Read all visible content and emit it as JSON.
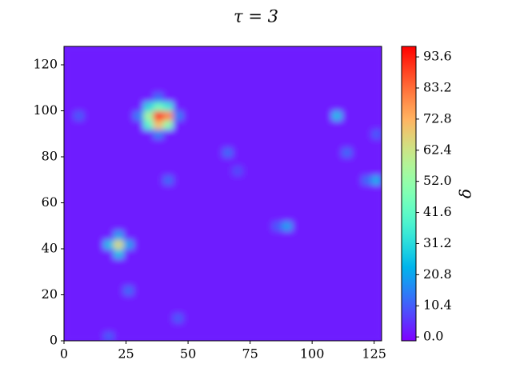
{
  "chart_data": {
    "type": "heatmap",
    "title": "τ = 3",
    "colorbar_label": "δ",
    "xlim": [
      0,
      128
    ],
    "ylim": [
      0,
      128
    ],
    "xticks": [
      0,
      25,
      50,
      75,
      100,
      125
    ],
    "yticks": [
      0,
      20,
      40,
      60,
      80,
      100,
      120
    ],
    "colormap": "rainbow",
    "clim": [
      -1.3,
      97.1
    ],
    "cticks": [
      {
        "value": 0,
        "label": "0.0"
      },
      10.4,
      20.8,
      31.2,
      41.6,
      {
        "value": 52,
        "label": "52.0"
      },
      62.4,
      72.8,
      83.2,
      93.6
    ],
    "z": [
      [
        2,
        2,
        2,
        2,
        10,
        2,
        2,
        2,
        2,
        2,
        2,
        2,
        2,
        2,
        2,
        2,
        2,
        2,
        2,
        2,
        2,
        2,
        2,
        2,
        2,
        2,
        2,
        2,
        2,
        2,
        2,
        2
      ],
      [
        2,
        2,
        2,
        2,
        2,
        2,
        2,
        2,
        2,
        2,
        2,
        2,
        2,
        2,
        2,
        2,
        2,
        2,
        2,
        2,
        2,
        2,
        2,
        2,
        2,
        2,
        2,
        2,
        2,
        2,
        2,
        2
      ],
      [
        2,
        2,
        2,
        2,
        2,
        2,
        2,
        2,
        2,
        2,
        2,
        10,
        2,
        2,
        2,
        2,
        2,
        2,
        2,
        2,
        2,
        2,
        2,
        2,
        2,
        2,
        2,
        2,
        2,
        2,
        2,
        2
      ],
      [
        2,
        2,
        2,
        2,
        2,
        2,
        2,
        2,
        2,
        2,
        2,
        2,
        2,
        2,
        2,
        2,
        2,
        2,
        2,
        2,
        2,
        2,
        2,
        2,
        2,
        2,
        2,
        2,
        2,
        2,
        2,
        2
      ],
      [
        2,
        2,
        2,
        2,
        2,
        2,
        2,
        2,
        2,
        2,
        2,
        2,
        2,
        2,
        2,
        2,
        2,
        2,
        2,
        2,
        2,
        2,
        2,
        2,
        2,
        2,
        2,
        2,
        2,
        2,
        2,
        2
      ],
      [
        2,
        2,
        2,
        2,
        2,
        2,
        12,
        2,
        2,
        2,
        2,
        2,
        2,
        2,
        2,
        2,
        2,
        2,
        2,
        2,
        2,
        2,
        2,
        2,
        2,
        2,
        2,
        2,
        2,
        2,
        2,
        2
      ],
      [
        2,
        2,
        2,
        2,
        2,
        2,
        2,
        2,
        2,
        2,
        2,
        2,
        2,
        2,
        2,
        2,
        2,
        2,
        2,
        2,
        2,
        2,
        2,
        2,
        2,
        2,
        2,
        2,
        2,
        2,
        2,
        2
      ],
      [
        2,
        2,
        2,
        2,
        2,
        2,
        2,
        2,
        2,
        2,
        2,
        2,
        2,
        2,
        2,
        2,
        2,
        2,
        2,
        2,
        2,
        2,
        2,
        2,
        2,
        2,
        2,
        2,
        2,
        2,
        2,
        2
      ],
      [
        2,
        2,
        2,
        2,
        2,
        2,
        2,
        2,
        2,
        2,
        2,
        2,
        2,
        2,
        2,
        2,
        2,
        2,
        2,
        2,
        2,
        2,
        2,
        2,
        2,
        2,
        2,
        2,
        2,
        2,
        2,
        2
      ],
      [
        2,
        2,
        2,
        2,
        2,
        25,
        2,
        2,
        2,
        2,
        2,
        2,
        2,
        2,
        2,
        2,
        2,
        2,
        2,
        2,
        2,
        2,
        2,
        2,
        2,
        2,
        2,
        2,
        2,
        2,
        2,
        2
      ],
      [
        2,
        2,
        2,
        2,
        25,
        65,
        20,
        2,
        2,
        2,
        2,
        2,
        2,
        2,
        2,
        2,
        2,
        2,
        2,
        2,
        2,
        2,
        2,
        2,
        2,
        2,
        2,
        2,
        2,
        2,
        2,
        2
      ],
      [
        2,
        2,
        2,
        2,
        2,
        20,
        2,
        2,
        2,
        2,
        2,
        2,
        2,
        2,
        2,
        2,
        2,
        2,
        2,
        2,
        2,
        2,
        2,
        2,
        2,
        2,
        2,
        2,
        2,
        2,
        2,
        2
      ],
      [
        2,
        2,
        2,
        2,
        2,
        2,
        2,
        2,
        2,
        2,
        2,
        2,
        2,
        2,
        2,
        2,
        2,
        2,
        2,
        2,
        2,
        10,
        20,
        2,
        2,
        2,
        2,
        2,
        2,
        2,
        2,
        2
      ],
      [
        2,
        2,
        2,
        2,
        2,
        2,
        2,
        2,
        2,
        2,
        2,
        2,
        2,
        2,
        2,
        2,
        2,
        2,
        2,
        2,
        2,
        2,
        2,
        2,
        2,
        2,
        2,
        2,
        2,
        2,
        2,
        2
      ],
      [
        2,
        2,
        2,
        2,
        2,
        2,
        2,
        2,
        2,
        2,
        2,
        2,
        2,
        2,
        2,
        2,
        2,
        2,
        2,
        2,
        2,
        2,
        2,
        2,
        2,
        2,
        2,
        2,
        2,
        2,
        2,
        2
      ],
      [
        2,
        2,
        2,
        2,
        2,
        2,
        2,
        2,
        2,
        2,
        2,
        2,
        2,
        2,
        2,
        2,
        2,
        2,
        2,
        2,
        2,
        2,
        2,
        2,
        2,
        2,
        2,
        2,
        2,
        2,
        2,
        2
      ],
      [
        2,
        2,
        2,
        2,
        2,
        2,
        2,
        2,
        2,
        2,
        2,
        2,
        2,
        2,
        2,
        2,
        2,
        2,
        2,
        2,
        2,
        2,
        2,
        2,
        2,
        2,
        2,
        2,
        2,
        2,
        2,
        2
      ],
      [
        2,
        2,
        2,
        2,
        2,
        2,
        2,
        2,
        2,
        2,
        12,
        2,
        2,
        2,
        2,
        2,
        2,
        2,
        2,
        2,
        2,
        2,
        2,
        2,
        2,
        2,
        2,
        2,
        2,
        2,
        12,
        22
      ],
      [
        2,
        2,
        2,
        2,
        2,
        2,
        2,
        2,
        2,
        2,
        2,
        2,
        2,
        2,
        2,
        2,
        2,
        8,
        2,
        2,
        2,
        2,
        2,
        2,
        2,
        2,
        2,
        2,
        2,
        2,
        2,
        2
      ],
      [
        2,
        2,
        2,
        2,
        2,
        2,
        2,
        2,
        2,
        2,
        2,
        2,
        2,
        2,
        2,
        2,
        2,
        2,
        2,
        2,
        2,
        2,
        2,
        2,
        2,
        2,
        2,
        2,
        2,
        2,
        2,
        2
      ],
      [
        2,
        2,
        2,
        2,
        2,
        2,
        2,
        2,
        2,
        2,
        2,
        2,
        2,
        2,
        2,
        2,
        12,
        2,
        2,
        2,
        2,
        2,
        2,
        2,
        2,
        2,
        2,
        2,
        12,
        2,
        2,
        2
      ],
      [
        2,
        2,
        2,
        2,
        2,
        2,
        2,
        2,
        2,
        2,
        2,
        2,
        2,
        2,
        2,
        2,
        2,
        2,
        2,
        2,
        2,
        2,
        2,
        2,
        2,
        2,
        2,
        2,
        2,
        2,
        2,
        2
      ],
      [
        2,
        2,
        2,
        2,
        2,
        2,
        2,
        2,
        2,
        15,
        2,
        2,
        2,
        2,
        2,
        2,
        2,
        2,
        2,
        2,
        2,
        2,
        2,
        2,
        2,
        2,
        2,
        2,
        2,
        2,
        2,
        10
      ],
      [
        2,
        2,
        2,
        2,
        2,
        2,
        2,
        2,
        40,
        70,
        50,
        2,
        2,
        2,
        2,
        2,
        2,
        2,
        2,
        2,
        2,
        2,
        2,
        2,
        2,
        2,
        2,
        2,
        2,
        2,
        2,
        2
      ],
      [
        2,
        10,
        2,
        2,
        2,
        2,
        2,
        15,
        55,
        95,
        80,
        15,
        2,
        2,
        2,
        2,
        2,
        2,
        2,
        2,
        2,
        2,
        2,
        2,
        2,
        2,
        2,
        25,
        2,
        2,
        2,
        2
      ],
      [
        2,
        2,
        2,
        2,
        2,
        2,
        2,
        2,
        30,
        45,
        35,
        2,
        2,
        2,
        2,
        2,
        2,
        2,
        2,
        2,
        2,
        2,
        2,
        2,
        2,
        2,
        2,
        2,
        2,
        2,
        2,
        2
      ],
      [
        2,
        2,
        2,
        2,
        2,
        2,
        2,
        2,
        2,
        12,
        2,
        2,
        2,
        2,
        2,
        2,
        2,
        2,
        2,
        2,
        2,
        2,
        2,
        2,
        2,
        2,
        2,
        2,
        2,
        2,
        2,
        2
      ],
      [
        2,
        2,
        2,
        2,
        2,
        2,
        2,
        2,
        2,
        2,
        2,
        2,
        2,
        2,
        2,
        2,
        2,
        2,
        2,
        2,
        2,
        2,
        2,
        2,
        2,
        2,
        2,
        2,
        2,
        2,
        2,
        2
      ],
      [
        2,
        2,
        2,
        2,
        2,
        2,
        2,
        2,
        2,
        2,
        2,
        2,
        2,
        2,
        2,
        2,
        2,
        2,
        2,
        2,
        2,
        2,
        2,
        2,
        2,
        2,
        2,
        2,
        2,
        2,
        2,
        2
      ],
      [
        2,
        2,
        2,
        2,
        2,
        2,
        2,
        2,
        2,
        2,
        2,
        2,
        2,
        2,
        2,
        2,
        2,
        2,
        2,
        2,
        2,
        2,
        2,
        2,
        2,
        2,
        2,
        2,
        2,
        2,
        2,
        2
      ],
      [
        2,
        2,
        2,
        2,
        2,
        2,
        2,
        2,
        2,
        2,
        2,
        2,
        2,
        2,
        2,
        2,
        2,
        2,
        2,
        2,
        2,
        2,
        2,
        2,
        2,
        2,
        2,
        2,
        2,
        2,
        2,
        2
      ],
      [
        2,
        2,
        2,
        2,
        2,
        2,
        2,
        2,
        2,
        2,
        2,
        2,
        2,
        2,
        2,
        2,
        2,
        2,
        2,
        2,
        2,
        2,
        2,
        2,
        2,
        2,
        2,
        2,
        2,
        2,
        2,
        2
      ]
    ]
  }
}
